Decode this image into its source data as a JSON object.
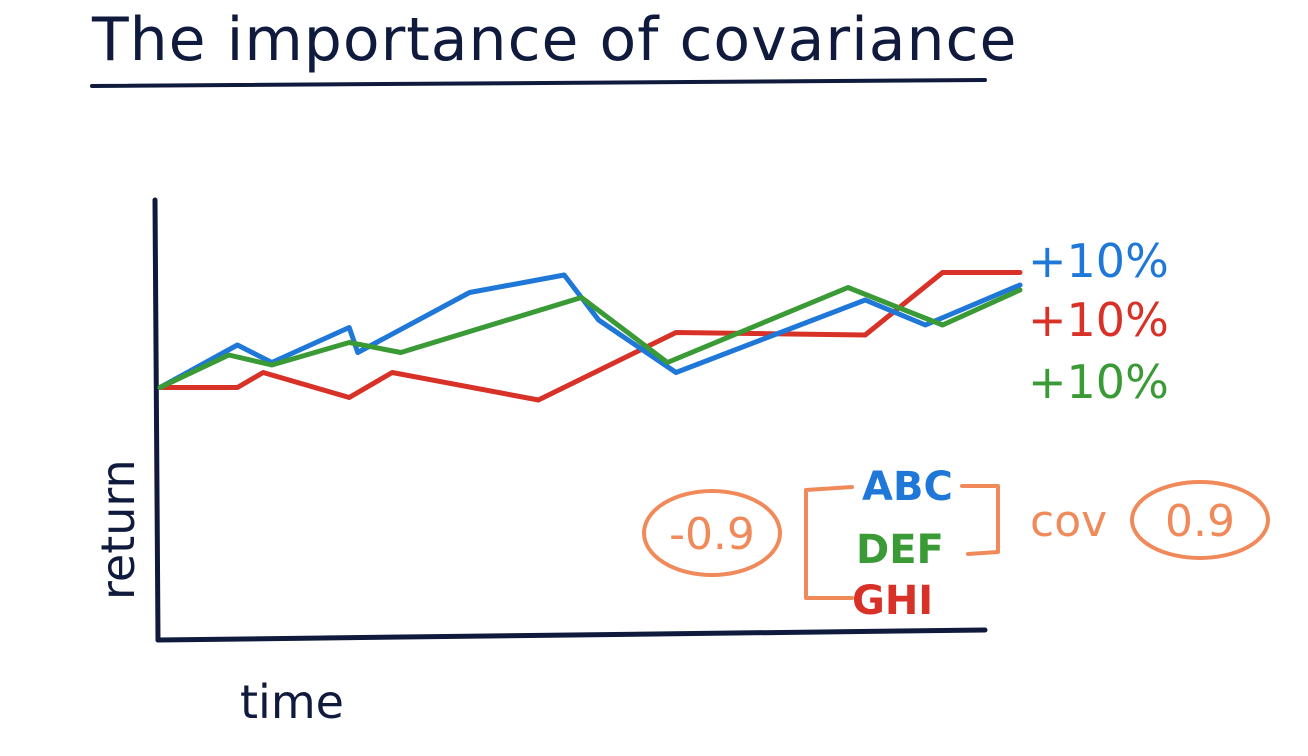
{
  "colors": {
    "ink": "#0f1a3c",
    "ABC": "#1f78d8",
    "DEF": "#3a9a36",
    "GHI": "#d83228",
    "annotation": "#f08a5a"
  },
  "chart_data": {
    "type": "line",
    "title": "The importance of covariance",
    "xlabel": "time",
    "ylabel": "return",
    "grid": false,
    "legend": "right",
    "xlim": [
      0,
      100
    ],
    "ylim": [
      0,
      100
    ],
    "series": [
      {
        "name": "ABC",
        "end_label": "+10%",
        "x": [
          0,
          9,
          13,
          22,
          23,
          36,
          47,
          51,
          60,
          82,
          89,
          100
        ],
        "y": [
          45,
          62,
          55,
          69,
          59,
          83,
          90,
          72,
          51,
          80,
          70,
          86
        ]
      },
      {
        "name": "DEF",
        "end_label": "+10%",
        "x": [
          0,
          8,
          13,
          22,
          28,
          49,
          59,
          80,
          91,
          100
        ],
        "y": [
          45,
          58,
          54,
          63,
          59,
          81,
          55,
          85,
          70,
          84
        ]
      },
      {
        "name": "GHI",
        "end_label": "+10%",
        "x": [
          0,
          9,
          12,
          22,
          27,
          44,
          60,
          82,
          91,
          100
        ],
        "y": [
          45,
          45,
          51,
          41,
          51,
          40,
          67,
          66,
          91,
          91
        ]
      }
    ],
    "annotations": {
      "cov_label": "cov",
      "positive_cov": "0.9",
      "negative_cov": "-0.9"
    }
  }
}
